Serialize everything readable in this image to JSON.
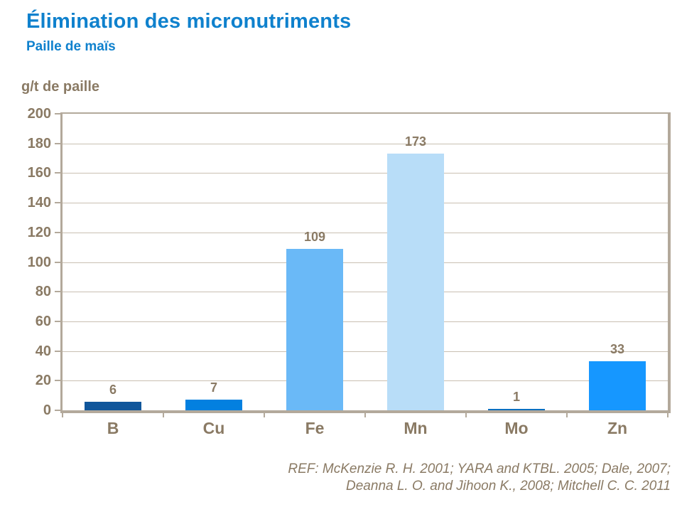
{
  "header": {
    "title": "Élimination des micronutriments",
    "subtitle": "Paille de maïs"
  },
  "chart_data": {
    "type": "bar",
    "title": "Élimination des micronutriments",
    "subtitle": "Paille de maïs",
    "ylabel": "g/t de paille",
    "xlabel": "",
    "categories": [
      "B",
      "Cu",
      "Fe",
      "Mn",
      "Mo",
      "Zn"
    ],
    "values": [
      6,
      7,
      109,
      173,
      1,
      33
    ],
    "bar_colors": [
      "#10569b",
      "#0380e0",
      "#6ab9f7",
      "#b8ddf8",
      "#0b6fc0",
      "#1697ff"
    ],
    "ylim": [
      0,
      200
    ],
    "ytick_step": 20,
    "grid": true,
    "legend": false
  },
  "footer": {
    "ref_line1": "REF: McKenzie R. H. 2001; YARA and KTBL. 2005; Dale, 2007;",
    "ref_line2": "Deanna L. O. and Jihoon K.,  2008; Mitchell C. C. 2011"
  },
  "colors": {
    "title_blue": "#0f81cd",
    "label_brown": "#8a7a64",
    "axis": "#b3a99b",
    "gridline": "#c9c0b2"
  }
}
